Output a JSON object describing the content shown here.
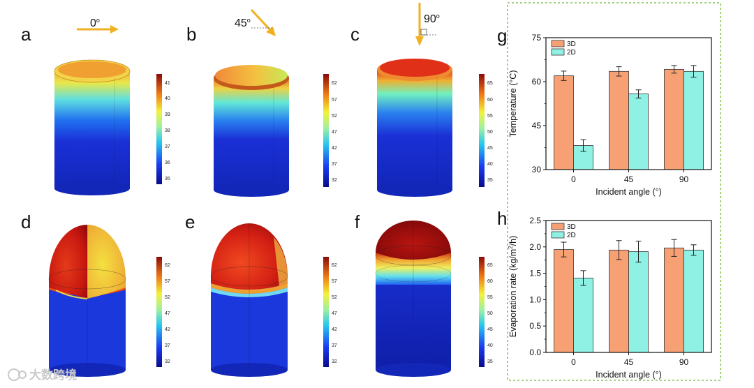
{
  "panels": {
    "a": {
      "label": "a",
      "angle": "0",
      "deg_symbol": "o",
      "colorbar_ticks": [
        "41",
        "40",
        "39",
        "38",
        "37",
        "36",
        "35"
      ]
    },
    "b": {
      "label": "b",
      "angle": "45",
      "deg_symbol": "o",
      "colorbar_ticks": [
        "62",
        "57",
        "52",
        "47",
        "42",
        "37",
        "32"
      ]
    },
    "c": {
      "label": "c",
      "angle": "90",
      "deg_symbol": "o",
      "colorbar_ticks": [
        "65",
        "60",
        "55",
        "50",
        "45",
        "40",
        "35"
      ]
    },
    "d": {
      "label": "d",
      "colorbar_ticks": [
        "62",
        "57",
        "52",
        "47",
        "42",
        "37",
        "32"
      ]
    },
    "e": {
      "label": "e",
      "colorbar_ticks": [
        "62",
        "57",
        "52",
        "47",
        "42",
        "37",
        "32"
      ]
    },
    "f": {
      "label": "f",
      "colorbar_ticks": [
        "65",
        "60",
        "55",
        "50",
        "45",
        "40",
        "35"
      ]
    }
  },
  "watermark": "大数跨境",
  "colors": {
    "orange": "#f7a074",
    "cyan": "#8ff0e4",
    "frame": "#88c25a"
  },
  "chart_data": [
    {
      "panel_label": "g",
      "type": "bar",
      "categories": [
        "0",
        "45",
        "90"
      ],
      "series": [
        {
          "name": "3D",
          "values": [
            62.0,
            63.5,
            64.2
          ],
          "errors": [
            1.6,
            1.6,
            1.3
          ]
        },
        {
          "name": "2D",
          "values": [
            38.2,
            55.8,
            63.5
          ],
          "errors": [
            2.0,
            1.4,
            2.0
          ]
        }
      ],
      "ylabel": "Temperature (",
      "ylabel_unit": "°C",
      "ylabel_close": ")",
      "xlabel": "Incident angle (",
      "xlabel_unit": "°",
      "xlabel_close": ")",
      "ylim": [
        30,
        75
      ],
      "yticks": [
        "30",
        "45",
        "60",
        "75"
      ],
      "legend": [
        "3D",
        "2D"
      ]
    },
    {
      "panel_label": "h",
      "type": "bar",
      "categories": [
        "0",
        "45",
        "90"
      ],
      "series": [
        {
          "name": "3D",
          "values": [
            1.95,
            1.94,
            1.98
          ],
          "errors": [
            0.14,
            0.18,
            0.16
          ]
        },
        {
          "name": "2D",
          "values": [
            1.41,
            1.91,
            1.94
          ],
          "errors": [
            0.14,
            0.2,
            0.1
          ]
        }
      ],
      "ylabel": "Evaporation rate (kg/m",
      "ylabel_sup": "2",
      "ylabel_close": "/h)",
      "xlabel": "Incident angle (",
      "xlabel_unit": "°",
      "xlabel_close": ")",
      "ylim": [
        0,
        2.5
      ],
      "yticks": [
        "0.0",
        "0.5",
        "1.0",
        "1.5",
        "2.0",
        "2.5"
      ],
      "legend": [
        "3D",
        "2D"
      ]
    }
  ]
}
